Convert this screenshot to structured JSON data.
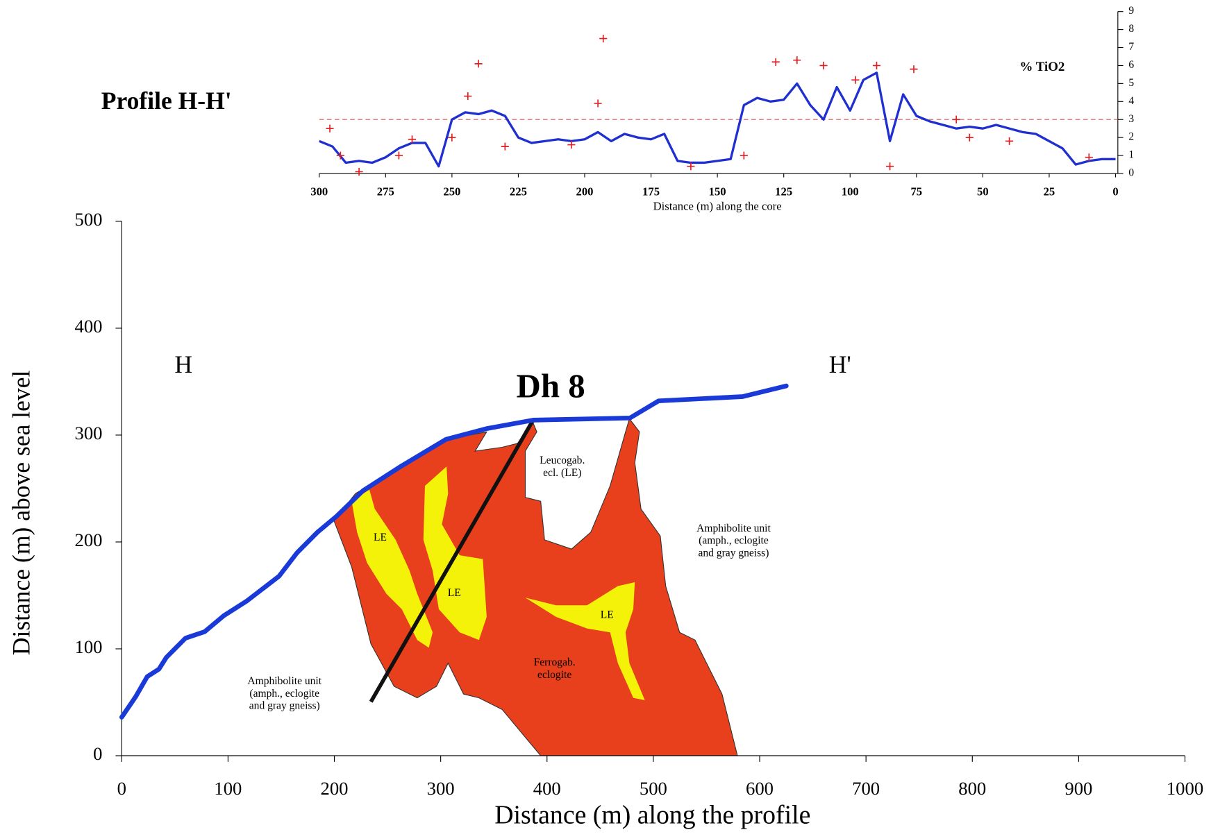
{
  "chart_data": [
    {
      "type": "line",
      "title": "Profile H-H'",
      "x_label": "Distance (m) along the core",
      "y_label": "% TiO2",
      "xlim": [
        300,
        0
      ],
      "xticks": [
        300,
        275,
        250,
        225,
        200,
        175,
        150,
        125,
        100,
        75,
        50,
        25,
        0
      ],
      "ylim": [
        0,
        9
      ],
      "yticks": [
        0,
        1,
        2,
        3,
        4,
        5,
        6,
        7,
        8,
        9
      ],
      "reference_line": {
        "value": 3,
        "color": "#e05050"
      },
      "series": [
        {
          "color": "#1f2fd0",
          "x": [
            300,
            295,
            290,
            285,
            280,
            275,
            270,
            265,
            260,
            255,
            250,
            245,
            240,
            235,
            230,
            225,
            220,
            215,
            210,
            205,
            200,
            195,
            190,
            185,
            180,
            175,
            170,
            165,
            160,
            155,
            150,
            145,
            140,
            135,
            130,
            125,
            120,
            115,
            110,
            105,
            100,
            95,
            90,
            85,
            80,
            75,
            70,
            65,
            60,
            55,
            50,
            45,
            40,
            35,
            30,
            25,
            20,
            15,
            10,
            5,
            0
          ],
          "values": [
            1.8,
            1.5,
            0.6,
            0.7,
            0.6,
            0.9,
            1.4,
            1.7,
            1.7,
            0.4,
            3.0,
            3.4,
            3.3,
            3.5,
            3.2,
            2.0,
            1.7,
            1.8,
            1.9,
            1.8,
            1.9,
            2.3,
            1.8,
            2.2,
            2.0,
            1.9,
            2.2,
            0.7,
            0.6,
            0.6,
            0.7,
            0.8,
            3.8,
            4.2,
            4.0,
            4.1,
            5.0,
            3.8,
            3.0,
            4.8,
            3.5,
            5.2,
            5.6,
            1.8,
            4.4,
            3.2,
            2.9,
            2.7,
            2.5,
            2.6,
            2.5,
            2.7,
            2.5,
            2.3,
            2.2,
            1.8,
            1.4,
            0.5,
            0.7,
            0.8,
            0.8
          ]
        },
        {
          "type": "scatter",
          "color": "#e02020",
          "x": [
            296,
            292,
            285,
            270,
            265,
            250,
            244,
            240,
            230,
            205,
            195,
            193,
            160,
            140,
            128,
            120,
            110,
            98,
            90,
            85,
            76,
            60,
            55,
            40,
            10
          ],
          "values": [
            2.5,
            1.0,
            0.1,
            1.0,
            1.9,
            2.0,
            4.3,
            6.1,
            1.5,
            1.6,
            3.9,
            7.5,
            0.4,
            1.0,
            6.2,
            6.3,
            6.0,
            5.2,
            6.0,
            0.4,
            5.8,
            3.0,
            2.0,
            1.8,
            0.9
          ]
        }
      ]
    },
    {
      "type": "line",
      "x_label": "Distance (m) along the profile",
      "y_label": "Distance (m) above sea level",
      "xlim": [
        0,
        1000
      ],
      "xticks": [
        0,
        100,
        200,
        300,
        400,
        500,
        600,
        700,
        800,
        900,
        1000
      ],
      "ylim": [
        0,
        500
      ],
      "yticks": [
        0,
        100,
        200,
        300,
        400,
        500
      ],
      "series": [
        {
          "color": "#1a3ad8",
          "x": [
            0,
            13,
            24,
            35,
            42,
            60,
            78,
            96,
            118,
            148,
            165,
            184,
            202,
            227,
            263,
            305,
            343,
            387,
            478,
            505,
            584,
            625
          ],
          "values": [
            36,
            55,
            74,
            81,
            92,
            110,
            116,
            131,
            145,
            168,
            190,
            209,
            224,
            248,
            271,
            296,
            306,
            314,
            316,
            332,
            336,
            346
          ]
        }
      ],
      "annotations": [
        "H",
        "H'",
        "Dh 8",
        [
          "Leucogab.",
          "ecl. (LE)"
        ],
        [
          "Amphibolite unit",
          "(amph., eclogite",
          "and gray gneiss)"
        ],
        [
          "Amphibolite unit",
          "(amph., eclogite",
          "and gray gneiss)"
        ],
        "LE",
        "LE",
        "LE",
        [
          "Ferrogab.",
          "eclogite"
        ]
      ]
    }
  ]
}
